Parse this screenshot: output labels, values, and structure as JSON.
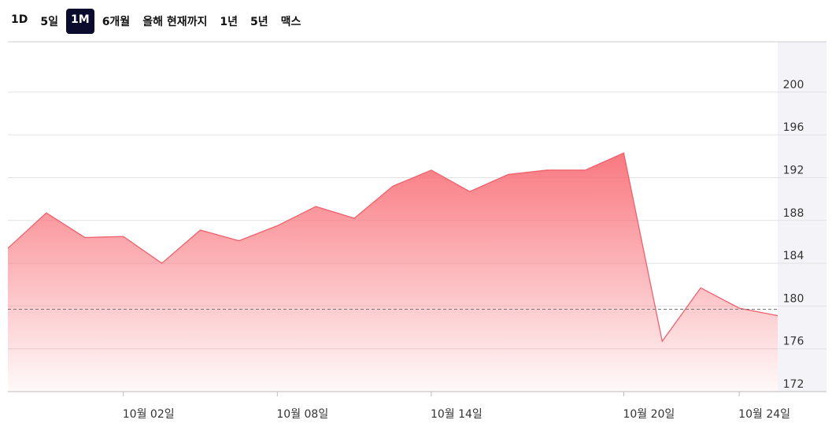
{
  "range_buttons": {
    "labels": [
      "1D",
      "5일",
      "1M",
      "6개월",
      "올해 현재까지",
      "1년",
      "5년",
      "맥스"
    ],
    "selected_index": 2
  },
  "chart_data": {
    "type": "area",
    "categories": [
      null,
      null,
      null,
      "10월 02일",
      null,
      null,
      null,
      "10월 08일",
      null,
      null,
      null,
      "10월 14일",
      null,
      null,
      null,
      null,
      "10월 20일",
      null,
      null,
      "10월 24일",
      null
    ],
    "series": [
      {
        "color": "#f0616d",
        "values": [
          185.4,
          188.7,
          186.4,
          186.5,
          184.0,
          187.1,
          186.1,
          187.5,
          189.3,
          188.2,
          191.2,
          192.7,
          190.7,
          192.3,
          192.7,
          192.7,
          194.3,
          176.7,
          181.7,
          179.8,
          179.1
        ]
      }
    ],
    "reference_line": 179.7,
    "ylim": [
      172,
      204.7
    ],
    "yticks": [
      172,
      176,
      180,
      184,
      188,
      192,
      196,
      200
    ],
    "grid": true
  }
}
